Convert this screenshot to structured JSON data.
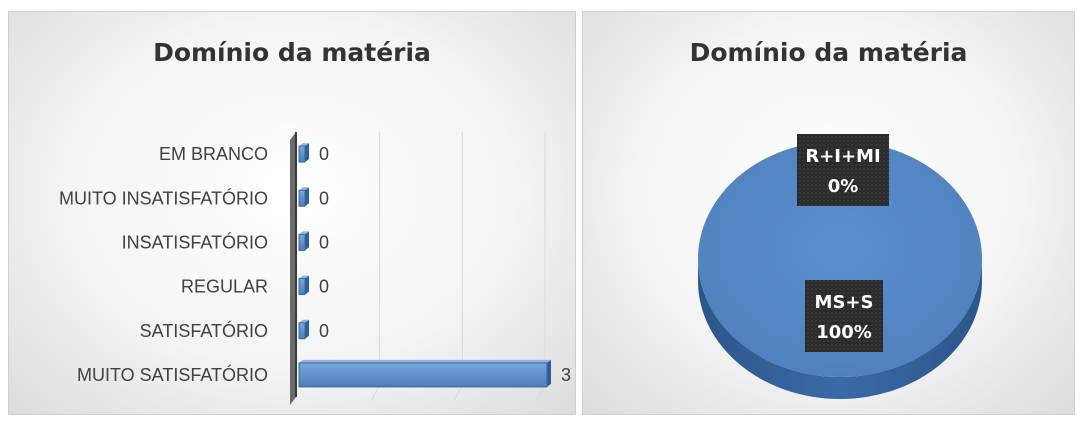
{
  "chart_data": [
    {
      "type": "bar",
      "orientation": "horizontal",
      "title": "Domínio da matéria",
      "categories": [
        "EM BRANCO",
        "MUITO INSATISFATÓRIO",
        "INSATISFATÓRIO",
        "REGULAR",
        "SATISFATÓRIO",
        "MUITO SATISFATÓRIO"
      ],
      "values": [
        0,
        0,
        0,
        0,
        0,
        3
      ],
      "xlim": [
        0,
        3
      ],
      "grid": true,
      "data_labels": true,
      "bar_color": "#4a7ebb"
    },
    {
      "type": "pie",
      "title": "Domínio da matéria",
      "slices": [
        {
          "label": "R+I+MI",
          "value": 0,
          "percent_label": "0%"
        },
        {
          "label": "MS+S",
          "value": 100,
          "percent_label": "100%"
        }
      ],
      "slice_color": "#4f81bd",
      "label_box_color": "#2b2b2b"
    }
  ]
}
